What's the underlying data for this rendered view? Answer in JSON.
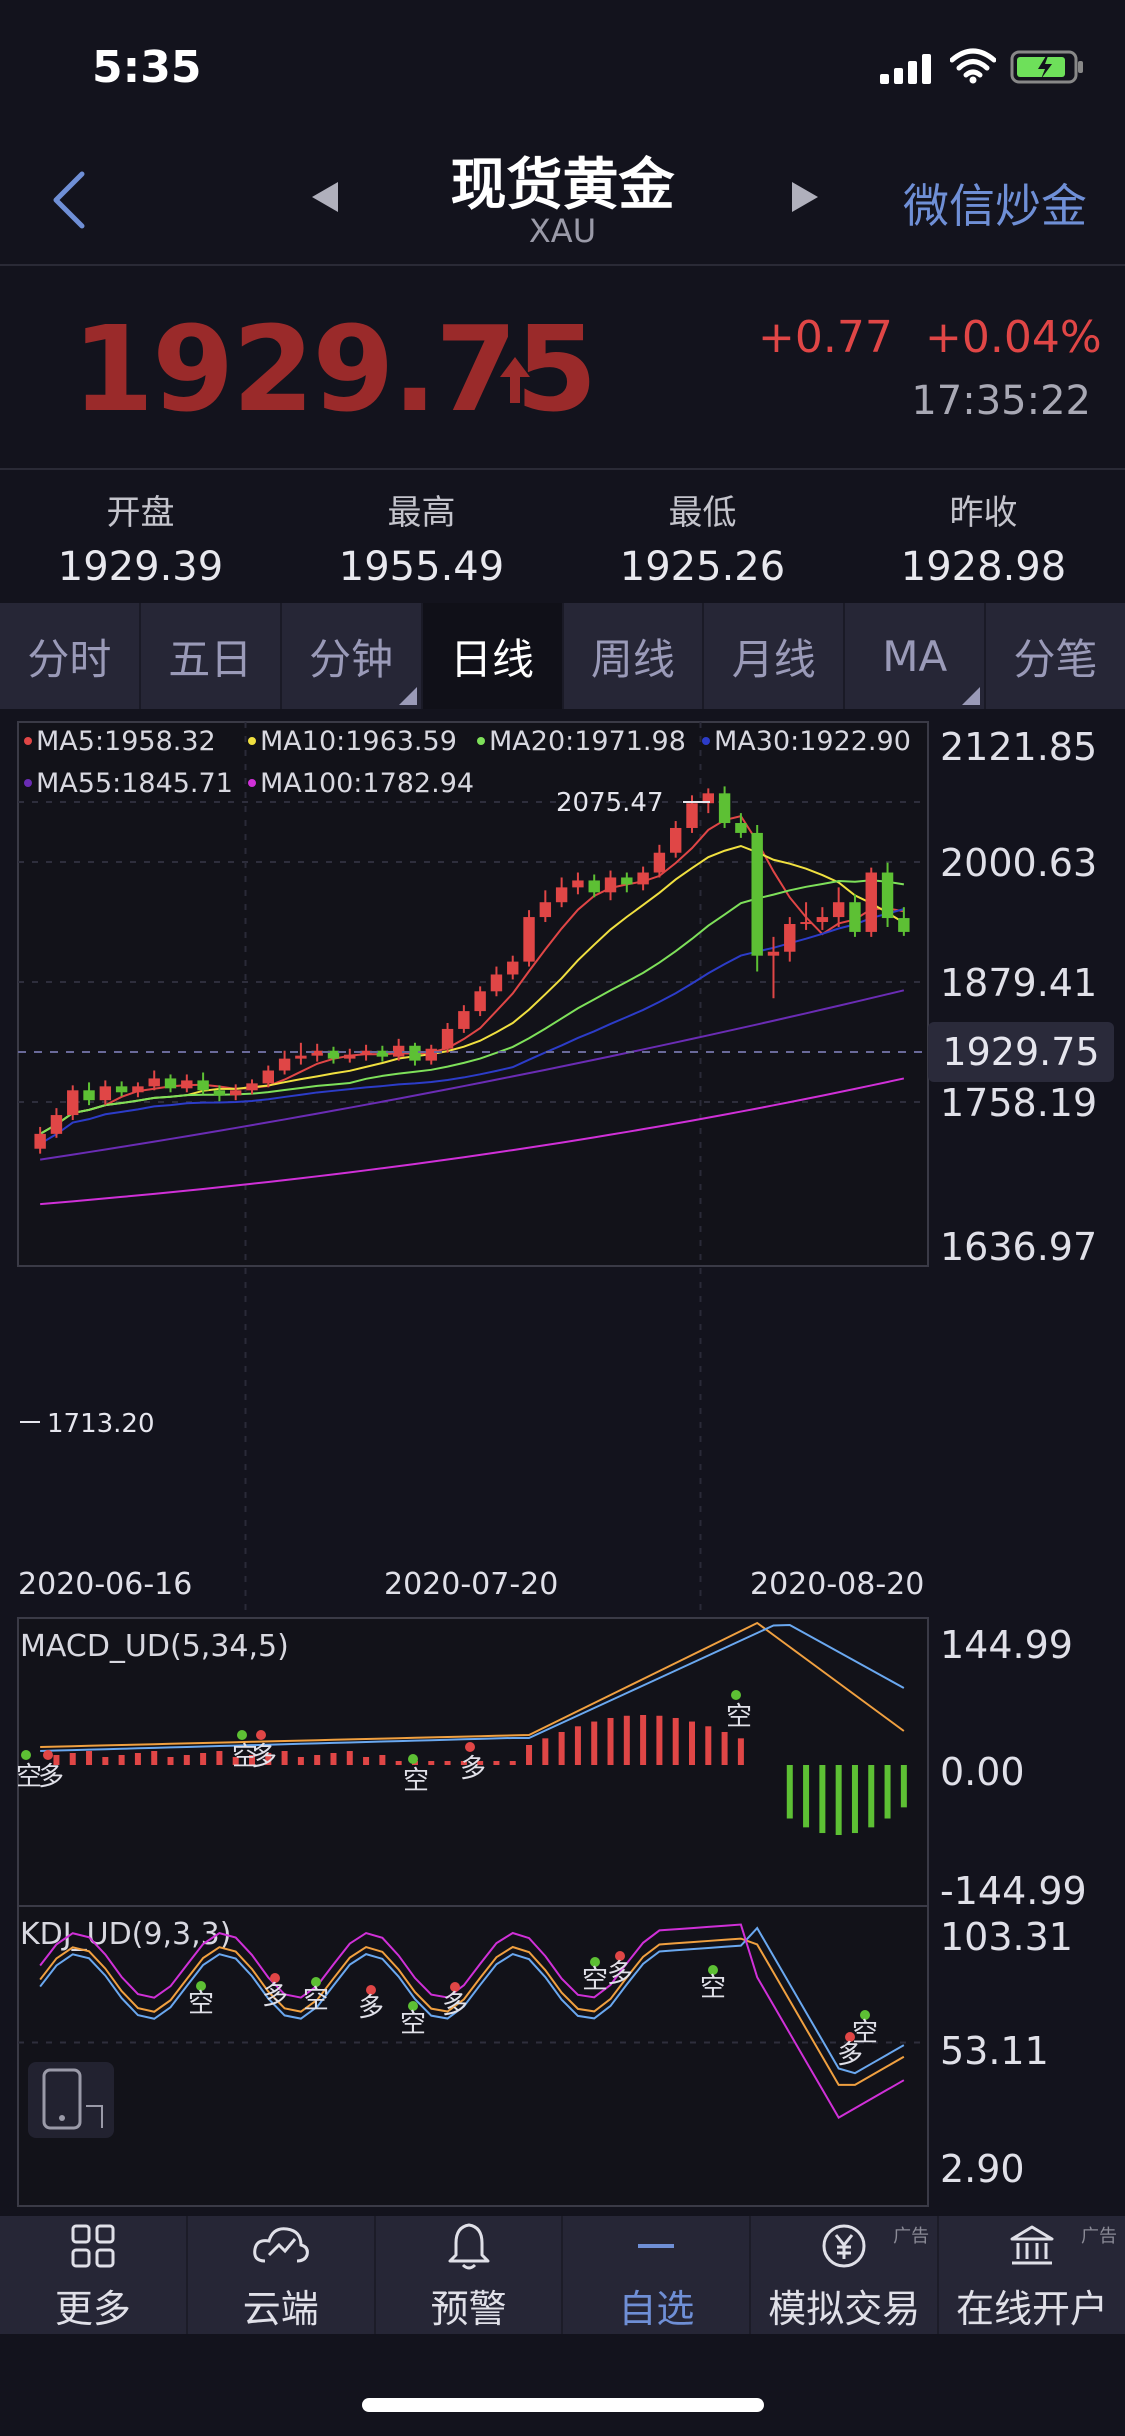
{
  "status": {
    "time": "5:35"
  },
  "header": {
    "title": "现货黄金",
    "subtitle": "XAU",
    "right_link": "微信炒金"
  },
  "quote": {
    "price": "1929.75",
    "change_abs": "+0.77",
    "change_pct": "+0.04%",
    "time": "17:35:22",
    "colors": {
      "price": "#9a2a2a",
      "change": "#e04646"
    }
  },
  "stats": [
    {
      "label": "开盘",
      "value": "1929.39"
    },
    {
      "label": "最高",
      "value": "1955.49"
    },
    {
      "label": "最低",
      "value": "1925.26"
    },
    {
      "label": "昨收",
      "value": "1928.98"
    }
  ],
  "tabs": [
    {
      "label": "分时",
      "active": false
    },
    {
      "label": "五日",
      "active": false
    },
    {
      "label": "分钟",
      "active": false,
      "dropdown": true
    },
    {
      "label": "日线",
      "active": true
    },
    {
      "label": "周线",
      "active": false
    },
    {
      "label": "月线",
      "active": false
    },
    {
      "label": "MA",
      "active": false,
      "dropdown": true
    },
    {
      "label": "分笔",
      "active": false
    }
  ],
  "chart_data": [
    {
      "type": "candlestick",
      "legend": [
        {
          "label": "MA5:1958.32",
          "color": "#e04646"
        },
        {
          "label": "MA10:1963.59",
          "color": "#f0e040"
        },
        {
          "label": "MA20:1971.98",
          "color": "#7ee05a"
        },
        {
          "label": "MA30:1922.90",
          "color": "#2c3cc8"
        },
        {
          "label": "MA55:1845.71",
          "color": "#6a2cb4"
        },
        {
          "label": "MA100:1782.94",
          "color": "#d030d8"
        }
      ],
      "y_ticks": [
        "2121.85",
        "2000.63",
        "1879.41",
        "1758.19",
        "1636.97"
      ],
      "current_price_label": "1929.75",
      "ylim": [
        1636.97,
        2121.85
      ],
      "x_ticks": [
        "2020-06-16",
        "2020-07-20",
        "2020-08-20"
      ],
      "annotations": {
        "high": "2075.47",
        "low": "1713.20"
      },
      "candles": [
        [
          1711,
          1726,
          1706,
          1733
        ],
        [
          1726,
          1745,
          1722,
          1752
        ],
        [
          1745,
          1770,
          1740,
          1775
        ],
        [
          1770,
          1760,
          1755,
          1778
        ],
        [
          1760,
          1774,
          1755,
          1780
        ],
        [
          1774,
          1768,
          1764,
          1779
        ],
        [
          1768,
          1774,
          1763,
          1778
        ],
        [
          1774,
          1782,
          1770,
          1790
        ],
        [
          1782,
          1772,
          1768,
          1786
        ],
        [
          1772,
          1780,
          1768,
          1786
        ],
        [
          1780,
          1770,
          1766,
          1788
        ],
        [
          1770,
          1765,
          1759,
          1775
        ],
        [
          1765,
          1770,
          1760,
          1776
        ],
        [
          1770,
          1777,
          1766,
          1781
        ],
        [
          1777,
          1790,
          1773,
          1795
        ],
        [
          1790,
          1802,
          1786,
          1810
        ],
        [
          1802,
          1805,
          1796,
          1818
        ],
        [
          1805,
          1810,
          1799,
          1817
        ],
        [
          1810,
          1802,
          1797,
          1814
        ],
        [
          1802,
          1806,
          1798,
          1812
        ],
        [
          1806,
          1810,
          1800,
          1816
        ],
        [
          1810,
          1804,
          1799,
          1815
        ],
        [
          1804,
          1815,
          1800,
          1822
        ],
        [
          1815,
          1800,
          1795,
          1818
        ],
        [
          1800,
          1812,
          1796,
          1816
        ],
        [
          1812,
          1832,
          1808,
          1838
        ],
        [
          1832,
          1850,
          1828,
          1856
        ],
        [
          1850,
          1870,
          1845,
          1875
        ],
        [
          1870,
          1887,
          1865,
          1895
        ],
        [
          1887,
          1900,
          1882,
          1906
        ],
        [
          1900,
          1945,
          1895,
          1952
        ],
        [
          1945,
          1960,
          1940,
          1972
        ],
        [
          1960,
          1975,
          1955,
          1985
        ],
        [
          1975,
          1982,
          1968,
          1990
        ],
        [
          1982,
          1970,
          1965,
          1988
        ],
        [
          1970,
          1985,
          1962,
          1992
        ],
        [
          1985,
          1978,
          1970,
          1990
        ],
        [
          1978,
          1990,
          1972,
          1996
        ],
        [
          1990,
          2010,
          1985,
          2018
        ],
        [
          2010,
          2035,
          2005,
          2042
        ],
        [
          2035,
          2060,
          2030,
          2068
        ],
        [
          2060,
          2070,
          2050,
          2075
        ],
        [
          2070,
          2040,
          2035,
          2077
        ],
        [
          2040,
          2030,
          2025,
          2050
        ],
        [
          2030,
          1906,
          1890,
          2038
        ],
        [
          1906,
          1910,
          1863,
          1925
        ],
        [
          1910,
          1938,
          1900,
          1945
        ],
        [
          1938,
          1940,
          1932,
          1960
        ],
        [
          1940,
          1945,
          1932,
          1955
        ],
        [
          1945,
          1960,
          1935,
          1975
        ],
        [
          1960,
          1930,
          1925,
          1968
        ],
        [
          1930,
          1990,
          1925,
          1995
        ],
        [
          1990,
          1944,
          1935,
          2000
        ],
        [
          1944,
          1930,
          1926,
          1955
        ]
      ]
    },
    {
      "type": "macd",
      "title": "MACD_UD(5,34,5)",
      "y_ticks": [
        "144.99",
        "0.00",
        "-144.99"
      ],
      "markers": [
        "空",
        "多",
        "空",
        "多",
        "空",
        "多",
        "空"
      ]
    },
    {
      "type": "kdj",
      "title": "KDJ_UD(9,3,3)",
      "y_ticks": [
        "103.31",
        "53.11",
        "2.90"
      ],
      "markers": [
        "空",
        "多",
        "空",
        "多",
        "空",
        "多",
        "空",
        "多",
        "空",
        "空",
        "多"
      ]
    }
  ],
  "bottom_nav": [
    {
      "label": "更多",
      "icon": "grid-icon",
      "active": false,
      "ad": ""
    },
    {
      "label": "云端",
      "icon": "cloud-chart-icon",
      "active": false,
      "ad": ""
    },
    {
      "label": "预警",
      "icon": "bell-icon",
      "active": false,
      "ad": ""
    },
    {
      "label": "自选",
      "icon": "minus-icon",
      "active": true,
      "ad": ""
    },
    {
      "label": "模拟交易",
      "icon": "yen-icon",
      "active": false,
      "ad": "广告"
    },
    {
      "label": "在线开户",
      "icon": "bank-icon",
      "active": false,
      "ad": "广告"
    }
  ]
}
